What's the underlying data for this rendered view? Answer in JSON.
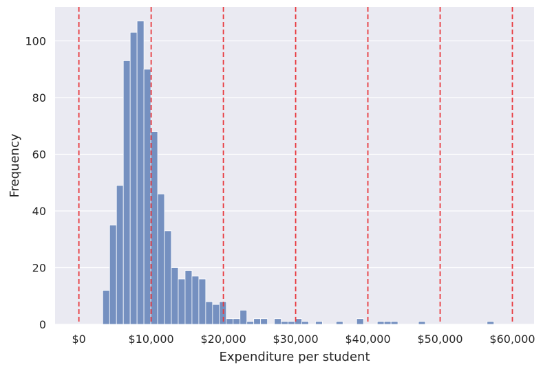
{
  "chart_data": {
    "type": "bar",
    "title": "",
    "xlabel": "Expenditure per student",
    "ylabel": "Frequency",
    "xlim": [
      -3300,
      63000
    ],
    "ylim": [
      0,
      112
    ],
    "grid": true,
    "legend": "none",
    "xticks": [
      0,
      10000,
      20000,
      30000,
      40000,
      50000,
      60000
    ],
    "xtick_labels": [
      "$0",
      "$10,000",
      "$20,000",
      "$30,000",
      "$40,000",
      "$50,000",
      "$60,000"
    ],
    "yticks": [
      0,
      20,
      40,
      60,
      80,
      100
    ],
    "ytick_labels": [
      "0",
      "20",
      "40",
      "60",
      "80",
      "100"
    ],
    "reference_lines_x": [
      0,
      10000,
      20000,
      30000,
      40000,
      50000,
      60000
    ],
    "bin_width": 950,
    "bin_starts": [
      3300,
      4250,
      5200,
      6150,
      7100,
      8050,
      9000,
      9950,
      10900,
      11850,
      12800,
      13750,
      14700,
      15650,
      16600,
      17550,
      18500,
      19450,
      20400,
      21350,
      22300,
      23250,
      24200,
      25150,
      26100,
      27050,
      28000,
      28950,
      29900,
      30850,
      31800,
      32750,
      33700,
      34650,
      35600,
      36550,
      37500,
      38450,
      39400,
      40350,
      41300,
      42250,
      43200,
      44150,
      45100,
      46050,
      47000,
      47950,
      48900,
      49850,
      50800,
      51750,
      52700,
      53650,
      54600,
      55550,
      56500
    ],
    "values": [
      12,
      35,
      49,
      93,
      103,
      107,
      90,
      68,
      46,
      33,
      20,
      16,
      19,
      17,
      16,
      8,
      7,
      8,
      2,
      2,
      5,
      1,
      2,
      2,
      0,
      2,
      1,
      1,
      2,
      1,
      0,
      1,
      0,
      0,
      1,
      0,
      0,
      2,
      0,
      0,
      1,
      1,
      1,
      0,
      0,
      0,
      1,
      0,
      0,
      0,
      0,
      0,
      0,
      0,
      0,
      0,
      1
    ],
    "colors": {
      "background": "#eaeaf2",
      "bar_fill": "#7590c0",
      "bar_edge": "#ffffff",
      "grid": "#ffffff",
      "reference_line": "#e8383d",
      "text": "#262626"
    }
  }
}
